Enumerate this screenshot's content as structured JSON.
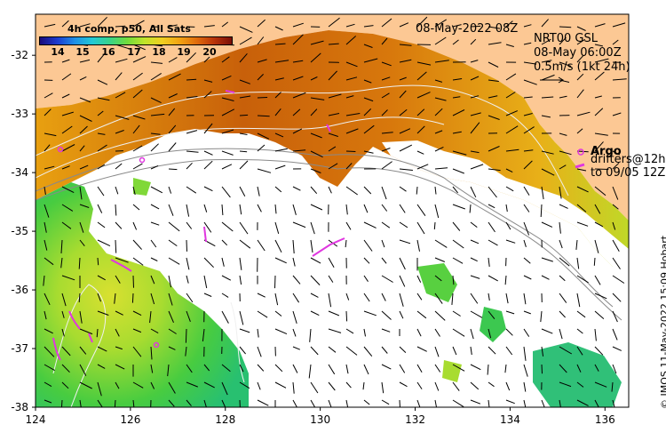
{
  "map": {
    "timestamp": "08-May-2022 08Z",
    "ssh_label": "NRT00 GSL",
    "ssh_time": "08-May 06:00Z",
    "vector_scale": "0.5m/s (1kt 24h)",
    "credit": "© IMOS 11-May-2022 15:09 Hobart"
  },
  "colorbar": {
    "title": "4h comp, p50, All Sats",
    "ticks": [
      "14",
      "15",
      "16",
      "17",
      "18",
      "19",
      "20"
    ]
  },
  "legend": {
    "argo_label": "Argo",
    "drifters_label": "drifters@12h",
    "drifters_to": "to 09/05 12Z"
  },
  "axes": {
    "x_ticks": [
      "124",
      "126",
      "128",
      "130",
      "132",
      "134",
      "136"
    ],
    "y_ticks": [
      "-32",
      "-33",
      "-34",
      "-35",
      "-36",
      "-37",
      "-38"
    ],
    "x_values": [
      124,
      126,
      128,
      130,
      132,
      134,
      136
    ],
    "y_values": [
      -32,
      -33,
      -34,
      -35,
      -36,
      -37,
      -38
    ],
    "lon_range": [
      124,
      136.5
    ],
    "lat_range": [
      -38,
      -31.3
    ]
  },
  "colors": {
    "land": "#fcc894",
    "cloud": "#ffffff",
    "warm": "#d8740c",
    "mid": "#9cd82a",
    "cool": "#2ccb5c",
    "argo": "#e036e0",
    "contour": "#f0f0f0",
    "bathymetry": "#8a8a8a"
  }
}
